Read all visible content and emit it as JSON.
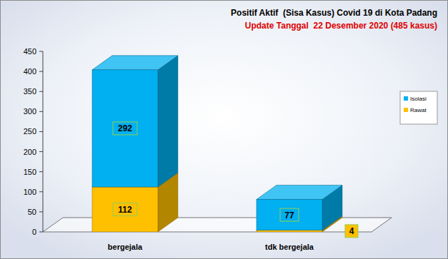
{
  "chart_data": {
    "type": "bar",
    "title": "Positif Aktif  (Sisa Kasus) Covid 19 di Kota Padang",
    "subtitle": "Update Tanggal  22 Desember 2020 (485 kasus)",
    "categories": [
      "bergejala",
      "tdk bergejala"
    ],
    "series": [
      {
        "name": "Isolasi",
        "color": "#00b0f0",
        "values": [
          292,
          77
        ]
      },
      {
        "name": "Rawat",
        "color": "#ffc000",
        "values": [
          112,
          4
        ]
      }
    ],
    "stacked": true,
    "data_labels": true,
    "ylim": [
      0,
      450
    ],
    "yticks": [
      0,
      50,
      100,
      150,
      200,
      250,
      300,
      350,
      400,
      450
    ],
    "grid": false,
    "legend": "right"
  }
}
